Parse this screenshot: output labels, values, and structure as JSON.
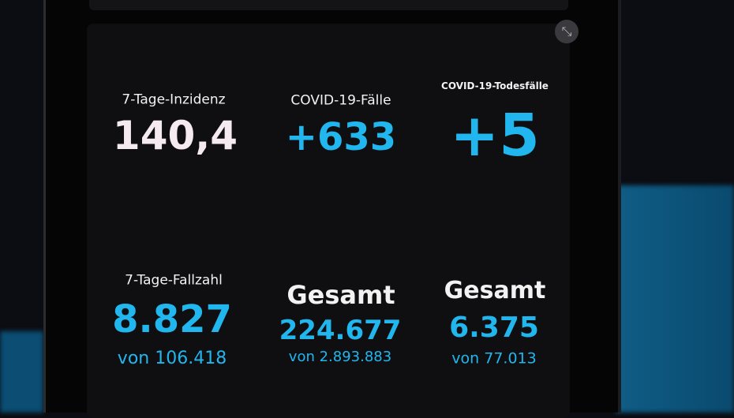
{
  "tiles": [
    {
      "label": "7-Tage-Inzidenz",
      "value": "140,4"
    },
    {
      "label": "COVID-19-Fälle",
      "value": "+633"
    },
    {
      "label": "COVID-19-Todesfälle",
      "value": "+5"
    },
    {
      "label": "7-Tage-Fallzahl",
      "value": "8.827",
      "sub": "von 106.418"
    },
    {
      "label": "Gesamt",
      "value": "224.677",
      "sub": "von 2.893.883"
    },
    {
      "label": "Gesamt",
      "value": "6.375",
      "sub": "von 77.013"
    }
  ]
}
